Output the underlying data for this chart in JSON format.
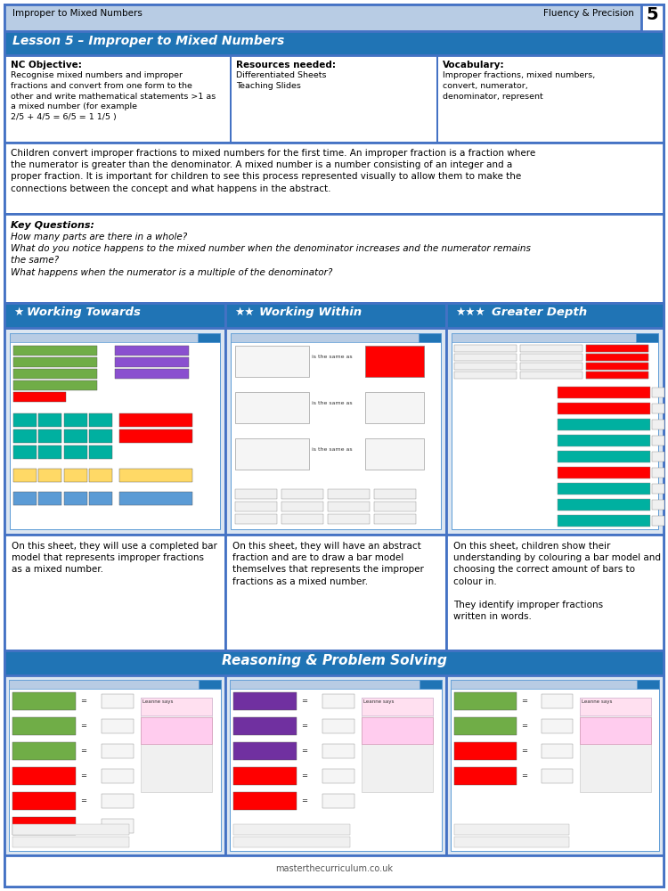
{
  "page_bg": "#ffffff",
  "border_color": "#4472c4",
  "header_bg": "#b8cce4",
  "header_left": "Improper to Mixed Numbers",
  "header_right": "Fluency & Precision",
  "header_number": "5",
  "lesson_title": "Lesson 5 – Improper to Mixed Numbers",
  "lesson_title_bg": "#2074b5",
  "lesson_title_color": "#ffffff",
  "nc_objective_title": "NC Objective:",
  "nc_objective_text": "Recognise mixed numbers and improper\nfractions and convert from one form to the\nother and write mathematical statements >1 as\na mixed number (for example\n2/5 + 4/5 = 6/5 = 1 1/5 )",
  "resources_title": "Resources needed:",
  "resources_text": "Differentiated Sheets\nTeaching Slides",
  "vocab_title": "Vocabulary:",
  "vocab_text": "Improper fractions, mixed numbers,\nconvert, numerator,\ndenominator, represent",
  "description_text": "Children convert improper fractions to mixed numbers for the first time. An improper fraction is a fraction where\nthe numerator is greater than the denominator. A mixed number is a number consisting of an integer and a\nproper fraction. It is important for children to see this process represented visually to allow them to make the\nconnections between the concept and what happens in the abstract.",
  "key_questions_title": "Key Questions:",
  "key_questions_text": "How many parts are there in a whole?\nWhat do you notice happens to the mixed number when the denominator increases and the numerator remains\nthe same?\nWhat happens when the numerator is a multiple of the denominator?",
  "working_towards": "Working Towards",
  "working_within": "Working Within",
  "greater_depth": "Greater Depth",
  "col_header_bg": "#2074b5",
  "col_header_color": "#ffffff",
  "worksheet_bg": "#dce6f1",
  "desc_towards": "On this sheet, they will use a completed bar\nmodel that represents improper fractions\nas a mixed number.",
  "desc_within": "On this sheet, they will have an abstract\nfraction and are to draw a bar model\nthemselves that represents the improper\nfractions as a mixed number.",
  "desc_depth": "On this sheet, children show their\nunderstanding by colouring a bar model and\nchoosing the correct amount of bars to\ncolour in.\n\nThey identify improper fractions\nwritten in words.",
  "reasoning_title": "Reasoning & Problem Solving",
  "reasoning_bg": "#2074b5",
  "reasoning_color": "#ffffff",
  "footer_text": "masterthecurriculum.co.uk",
  "green": "#70ad47",
  "red": "#ff0000",
  "teal": "#00b0a0",
  "purple": "#7030a0",
  "pink": "#ff66cc",
  "yellow_bar": "#ffc000",
  "light_blue": "#9dc3e6"
}
